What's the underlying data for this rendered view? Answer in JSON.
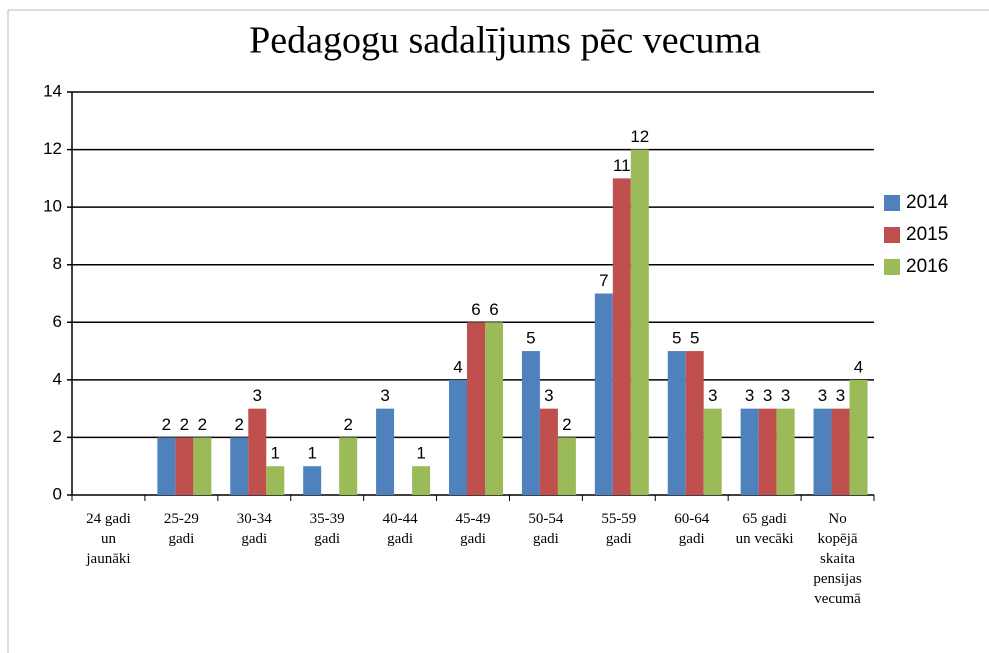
{
  "chart_data": {
    "type": "bar",
    "title": "Pedagogu sadalījums pēc vecuma",
    "categories": [
      "24 gadi un jaunāki",
      "25-29 gadi",
      "30-34 gadi",
      "35-39 gadi",
      "40-44 gadi",
      "45-49 gadi",
      "50-54 gadi",
      "55-59 gadi",
      "60-64 gadi",
      "65 gadi un vecāki",
      "No kopējā skaita pensijas vecumā"
    ],
    "series": [
      {
        "name": "2014",
        "color": "#4f81bd",
        "values": [
          null,
          2,
          2,
          1,
          3,
          4,
          5,
          7,
          5,
          3,
          3
        ]
      },
      {
        "name": "2015",
        "color": "#c0504d",
        "values": [
          null,
          2,
          3,
          null,
          null,
          6,
          3,
          11,
          5,
          3,
          3
        ]
      },
      {
        "name": "2016",
        "color": "#9bbb59",
        "values": [
          null,
          2,
          1,
          2,
          1,
          6,
          2,
          12,
          3,
          3,
          4
        ]
      }
    ],
    "ylim": [
      0,
      14
    ],
    "yticks": [
      0,
      2,
      4,
      6,
      8,
      10,
      12,
      14
    ],
    "grid": true,
    "legend": "right"
  }
}
